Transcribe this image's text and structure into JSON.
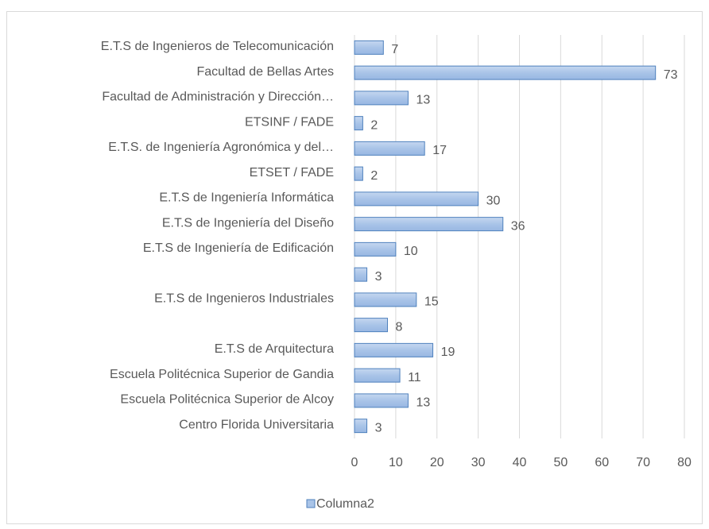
{
  "chart_data": {
    "type": "barh",
    "categories": [
      "E.T.S de Ingenieros de Telecomunicación",
      "Facultad de Bellas Artes",
      "Facultad de Administración y Dirección…",
      "ETSINF / FADE",
      "E.T.S. de Ingeniería Agronómica y del…",
      "ETSET / FADE",
      "E.T.S de Ingeniería Informática",
      "E.T.S de Ingeniería del Diseño",
      "E.T.S de Ingeniería de Edificación",
      null,
      "E.T.S de Ingenieros Industriales",
      null,
      "E.T.S de Arquitectura",
      "Escuela Politécnica Superior de Gandia",
      "Escuela Politécnica Superior de Alcoy",
      "Centro Florida Universitaria"
    ],
    "series": [
      {
        "name": "Columna2",
        "color": "#a9c4e8",
        "edgecolor": "#4f81bd",
        "values": [
          7,
          73,
          13,
          2,
          17,
          2,
          30,
          36,
          10,
          3,
          15,
          8,
          19,
          11,
          13,
          3
        ]
      }
    ],
    "xlim": [
      0,
      80
    ],
    "xticks": [
      0,
      10,
      20,
      30,
      40,
      50,
      60,
      70,
      80
    ],
    "grid": true,
    "legend": "bottom"
  }
}
